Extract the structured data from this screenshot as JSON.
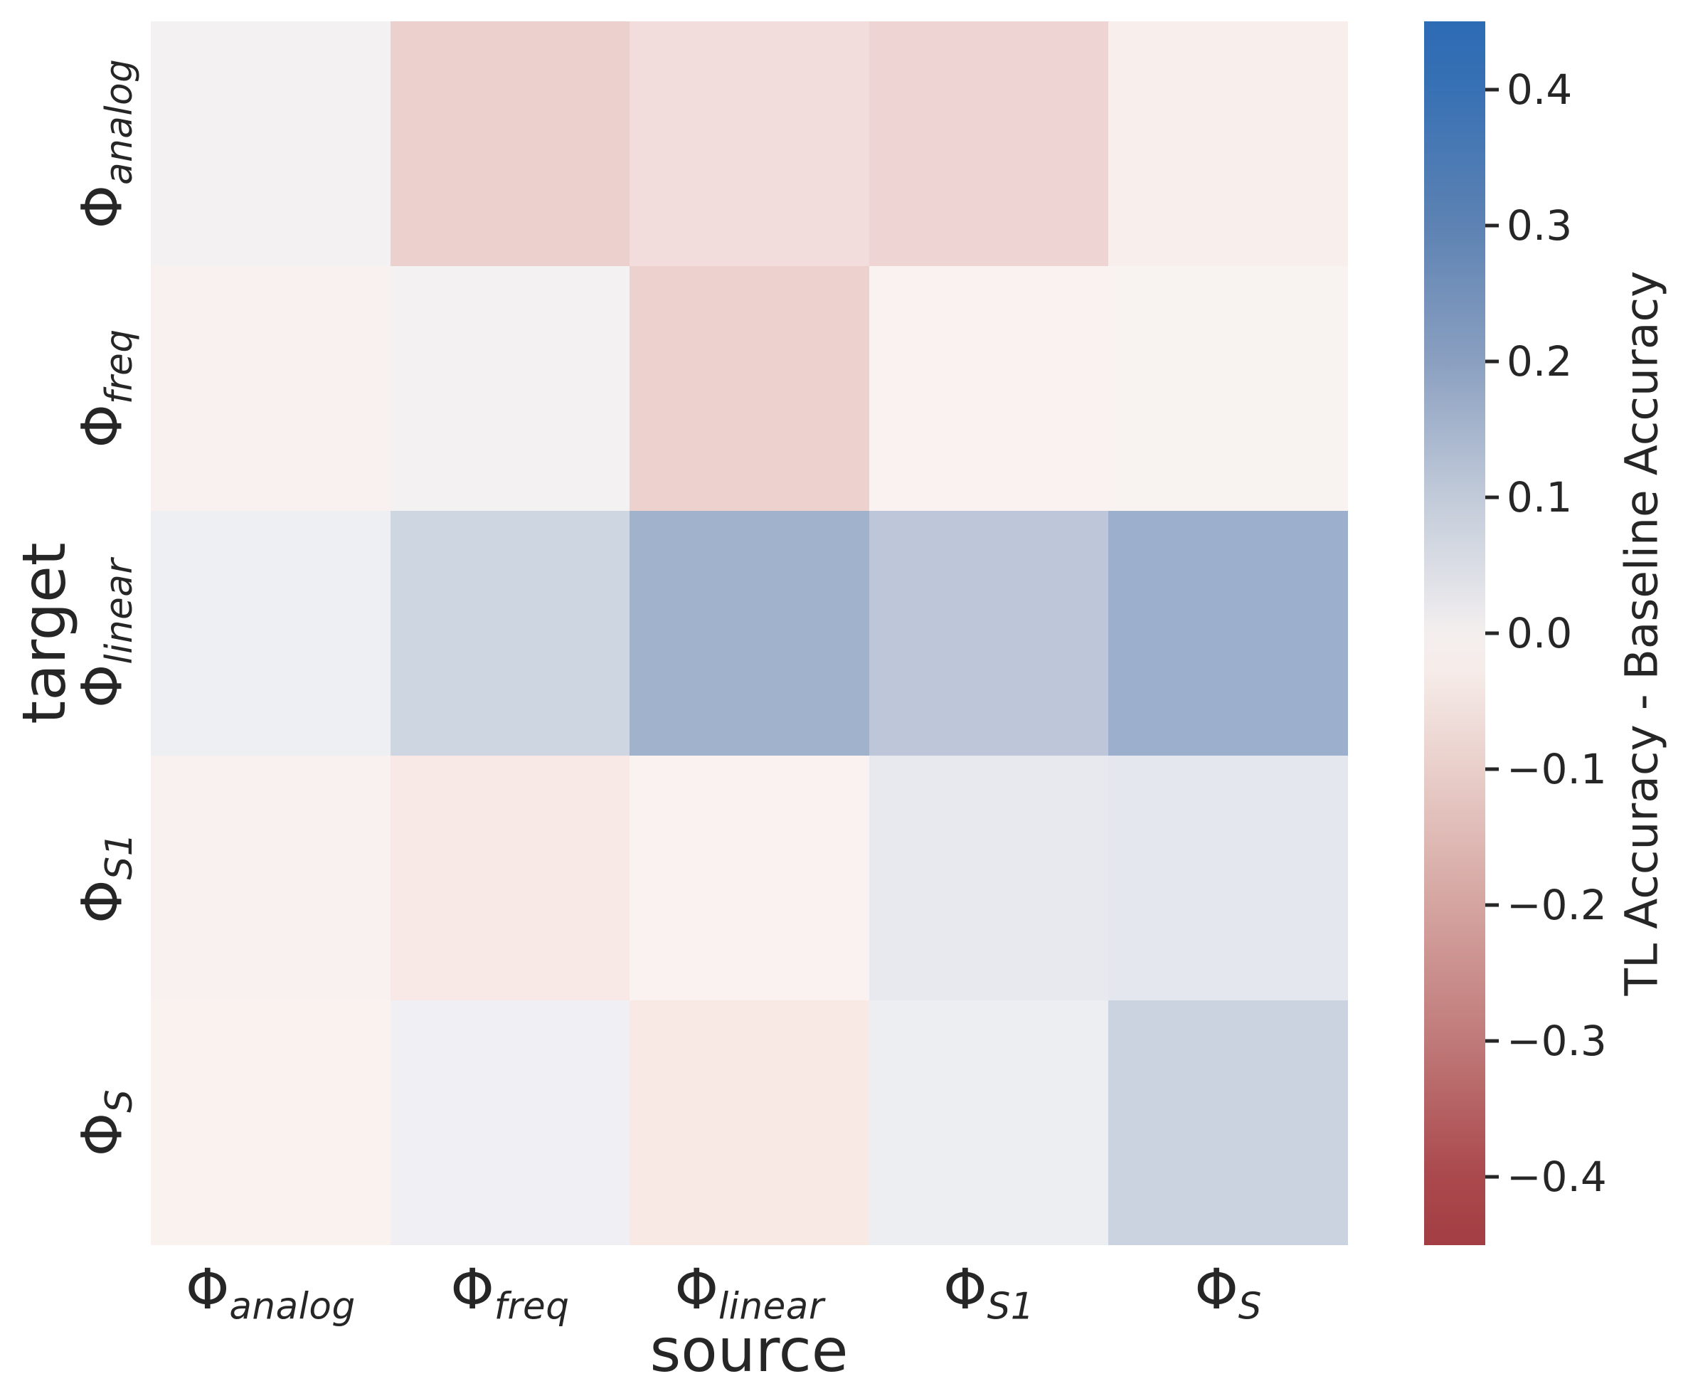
{
  "figure": {
    "background": "#ffffff",
    "text_color": "#262626"
  },
  "chart_data": {
    "type": "heatmap",
    "xlabel": "source",
    "ylabel": "target",
    "x_categories": [
      "Φ_analog",
      "Φ_freq",
      "Φ_linear",
      "Φ_S1",
      "Φ_S"
    ],
    "y_categories": [
      "Φ_analog",
      "Φ_freq",
      "Φ_linear",
      "Φ_S1",
      "Φ_S"
    ],
    "x_ticks": [
      {
        "base": "Φ",
        "sub": "analog"
      },
      {
        "base": "Φ",
        "sub": "freq"
      },
      {
        "base": "Φ",
        "sub": "linear"
      },
      {
        "base": "Φ",
        "sub": "S1"
      },
      {
        "base": "Φ",
        "sub": "S"
      }
    ],
    "y_ticks": [
      {
        "base": "Φ",
        "sub": "analog"
      },
      {
        "base": "Φ",
        "sub": "freq"
      },
      {
        "base": "Φ",
        "sub": "linear"
      },
      {
        "base": "Φ",
        "sub": "S1"
      },
      {
        "base": "Φ",
        "sub": "S"
      }
    ],
    "values": [
      [
        0.0,
        -0.1,
        -0.06,
        -0.08,
        -0.02
      ],
      [
        -0.02,
        0.0,
        -0.1,
        -0.02,
        -0.01
      ],
      [
        0.02,
        0.13,
        0.28,
        0.19,
        0.29
      ],
      [
        -0.02,
        -0.05,
        -0.02,
        0.04,
        0.05
      ],
      [
        -0.02,
        0.01,
        -0.05,
        0.03,
        0.13
      ]
    ],
    "cell_colors": [
      [
        "#f4f1f2",
        "#ebd0cd",
        "#f2dddc",
        "#eed5d4",
        "#f8eeec"
      ],
      [
        "#f9f1ef",
        "#f4f1f2",
        "#ecd1ce",
        "#f9f2f0",
        "#f8f2f1"
      ],
      [
        "#edeff2",
        "#ced6e2",
        "#a1b2cd",
        "#bec7d9",
        "#9cafcc"
      ],
      [
        "#f9f1f0",
        "#f9e9e6",
        "#f9f2f0",
        "#e7e9ee",
        "#e4e7ed"
      ],
      [
        "#f9f2ef",
        "#f0f0f4",
        "#f8e9e5",
        "#edeef2",
        "#ccd3e0"
      ]
    ],
    "colorbar": {
      "label": "TL Accuracy - Baseline Accuracy",
      "vmin": -0.45,
      "vmax": 0.45,
      "ticks": [
        {
          "value": 0.4,
          "label": "0.4"
        },
        {
          "value": 0.3,
          "label": "0.3"
        },
        {
          "value": 0.2,
          "label": "0.2"
        },
        {
          "value": 0.1,
          "label": "0.1"
        },
        {
          "value": 0.0,
          "label": "0.0"
        },
        {
          "value": -0.1,
          "label": "−0.1"
        },
        {
          "value": -0.2,
          "label": "−0.2"
        },
        {
          "value": -0.3,
          "label": "−0.3"
        },
        {
          "value": -0.4,
          "label": "−0.4"
        }
      ],
      "gradient_stops": [
        {
          "pos": "0%",
          "color": "#2d6bb5"
        },
        {
          "pos": "5%",
          "color": "#3670b4"
        },
        {
          "pos": "17%",
          "color": "#5e83b3"
        },
        {
          "pos": "28%",
          "color": "#8ba0c1"
        },
        {
          "pos": "39%",
          "color": "#c2cbd9"
        },
        {
          "pos": "47%",
          "color": "#e5e5ea"
        },
        {
          "pos": "50%",
          "color": "#f4efee"
        },
        {
          "pos": "53%",
          "color": "#f6ece9"
        },
        {
          "pos": "61%",
          "color": "#e9cfca"
        },
        {
          "pos": "72%",
          "color": "#d5a5a1"
        },
        {
          "pos": "83%",
          "color": "#c07b7a"
        },
        {
          "pos": "94%",
          "color": "#ab4a4e"
        },
        {
          "pos": "100%",
          "color": "#a23e43"
        }
      ]
    }
  }
}
